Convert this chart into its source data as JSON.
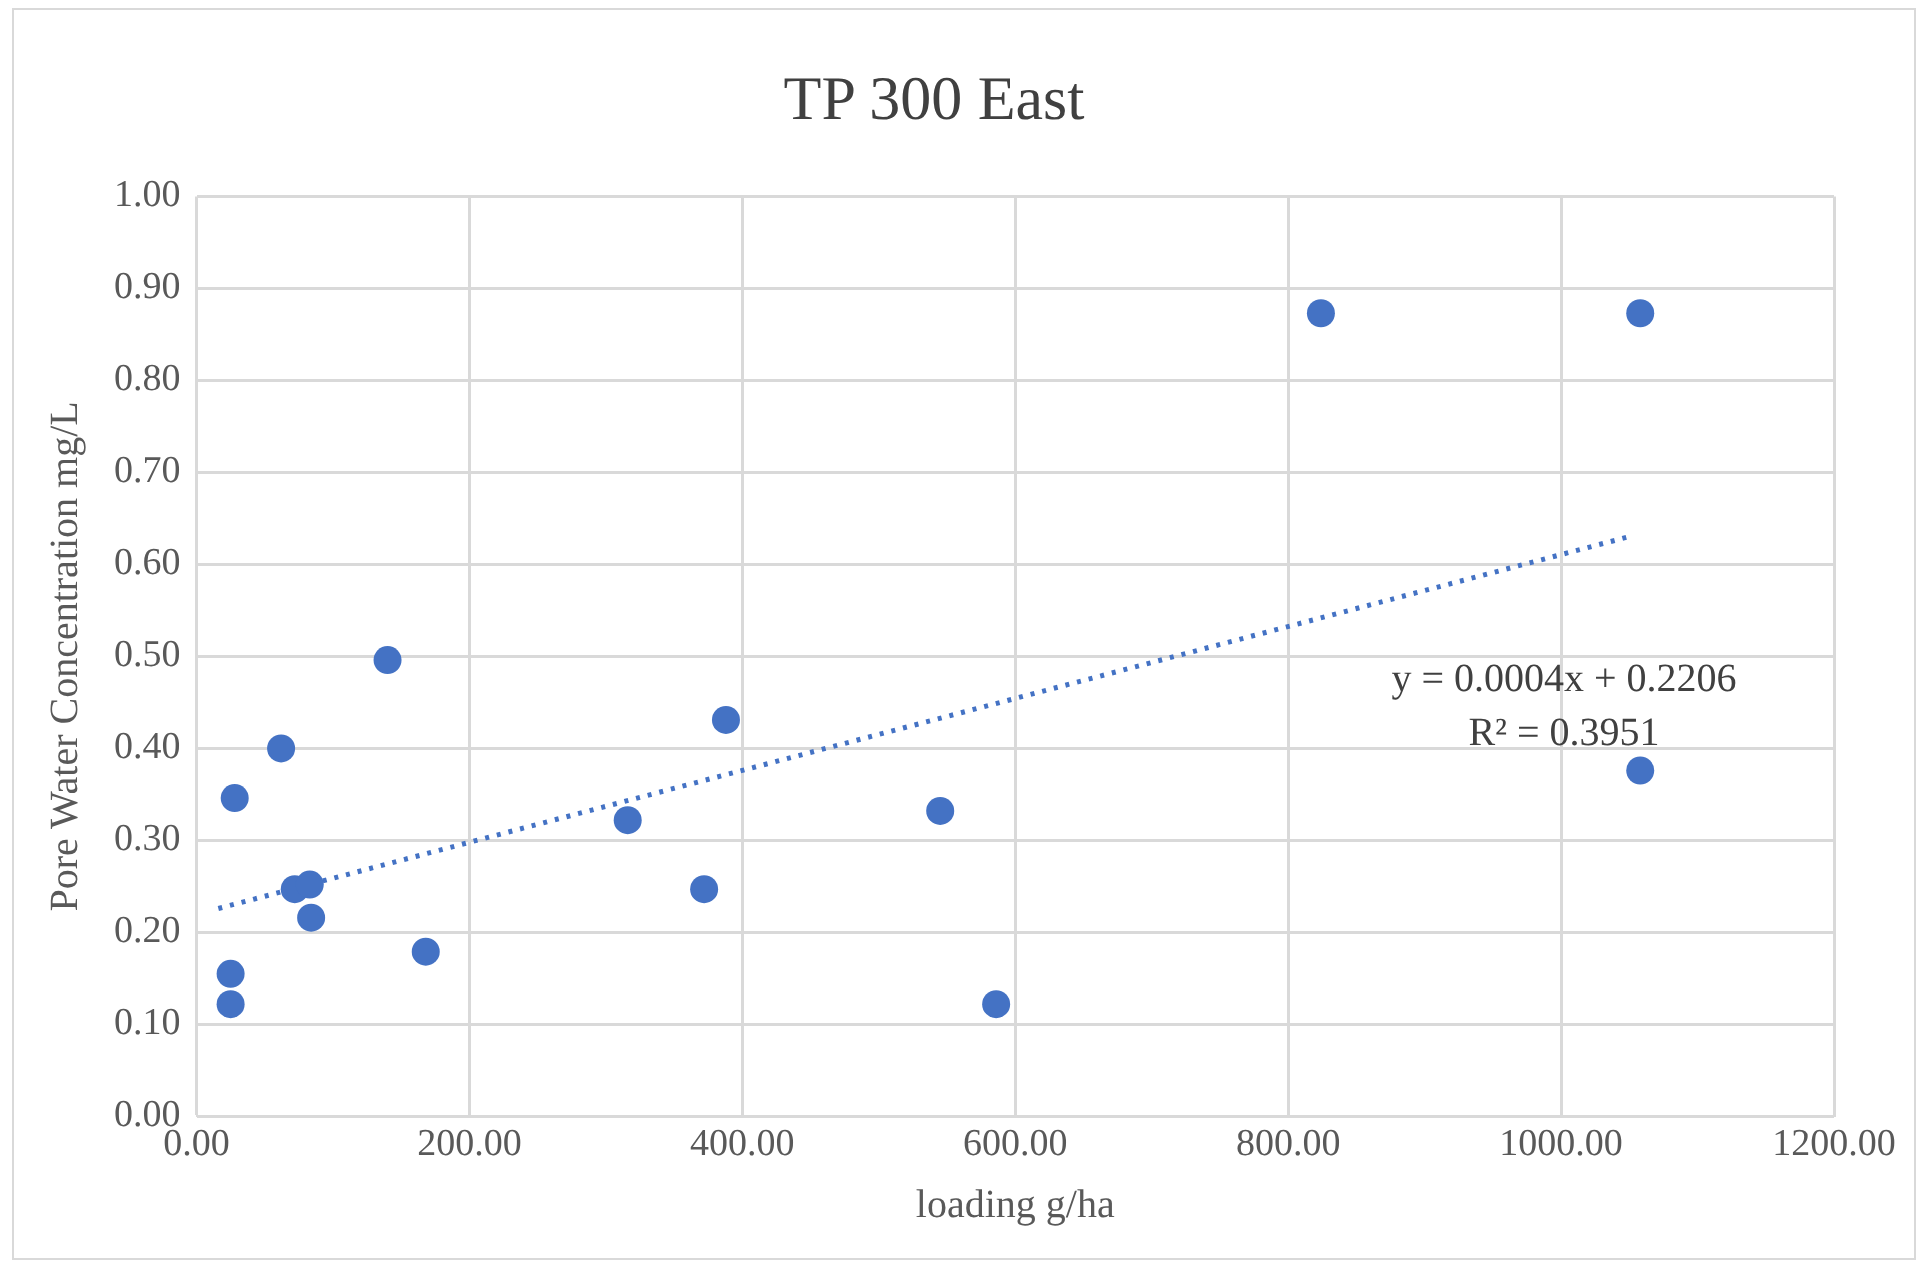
{
  "chart_data": {
    "type": "scatter",
    "title": "TP 300 East",
    "xlabel": "loading g/ha",
    "ylabel": "Pore Water Concentration mg/L",
    "xlim": [
      0,
      1200
    ],
    "ylim": [
      0,
      1
    ],
    "xticks": [
      {
        "value": 0,
        "label": "0.00"
      },
      {
        "value": 200,
        "label": "200.00"
      },
      {
        "value": 400,
        "label": "400.00"
      },
      {
        "value": 600,
        "label": "600.00"
      },
      {
        "value": 800,
        "label": "800.00"
      },
      {
        "value": 1000,
        "label": "1000.00"
      },
      {
        "value": 1200,
        "label": "1200.00"
      }
    ],
    "yticks": [
      {
        "value": 0,
        "label": "0.00"
      },
      {
        "value": 0.1,
        "label": "0.10"
      },
      {
        "value": 0.2,
        "label": "0.20"
      },
      {
        "value": 0.3,
        "label": "0.30"
      },
      {
        "value": 0.4,
        "label": "0.40"
      },
      {
        "value": 0.5,
        "label": "0.50"
      },
      {
        "value": 0.6,
        "label": "0.60"
      },
      {
        "value": 0.7,
        "label": "0.70"
      },
      {
        "value": 0.8,
        "label": "0.80"
      },
      {
        "value": 0.9,
        "label": "0.90"
      },
      {
        "value": 1,
        "label": "1.00"
      }
    ],
    "grid": true,
    "legend": false,
    "marker": "circle",
    "series": [
      {
        "color": "#4472c4",
        "x": [
          25,
          25,
          28,
          62,
          72,
          83,
          84,
          140,
          168,
          316,
          372,
          388,
          545,
          586,
          824,
          1058,
          1058
        ],
        "values": [
          0.122,
          0.155,
          0.346,
          0.4,
          0.247,
          0.252,
          0.216,
          0.496,
          0.179,
          0.322,
          0.247,
          0.431,
          0.332,
          0.122,
          0.873,
          0.873,
          0.376
        ]
      },
      {
        "type": "line",
        "color": "#4472c4",
        "line_style": "dotted",
        "marker": "none",
        "x": [
          16,
          1052
        ],
        "values": [
          0.226,
          0.631
        ]
      }
    ],
    "annotations": [
      "y = 0.0004x + 0.2206",
      "R² = 0.3951"
    ]
  }
}
